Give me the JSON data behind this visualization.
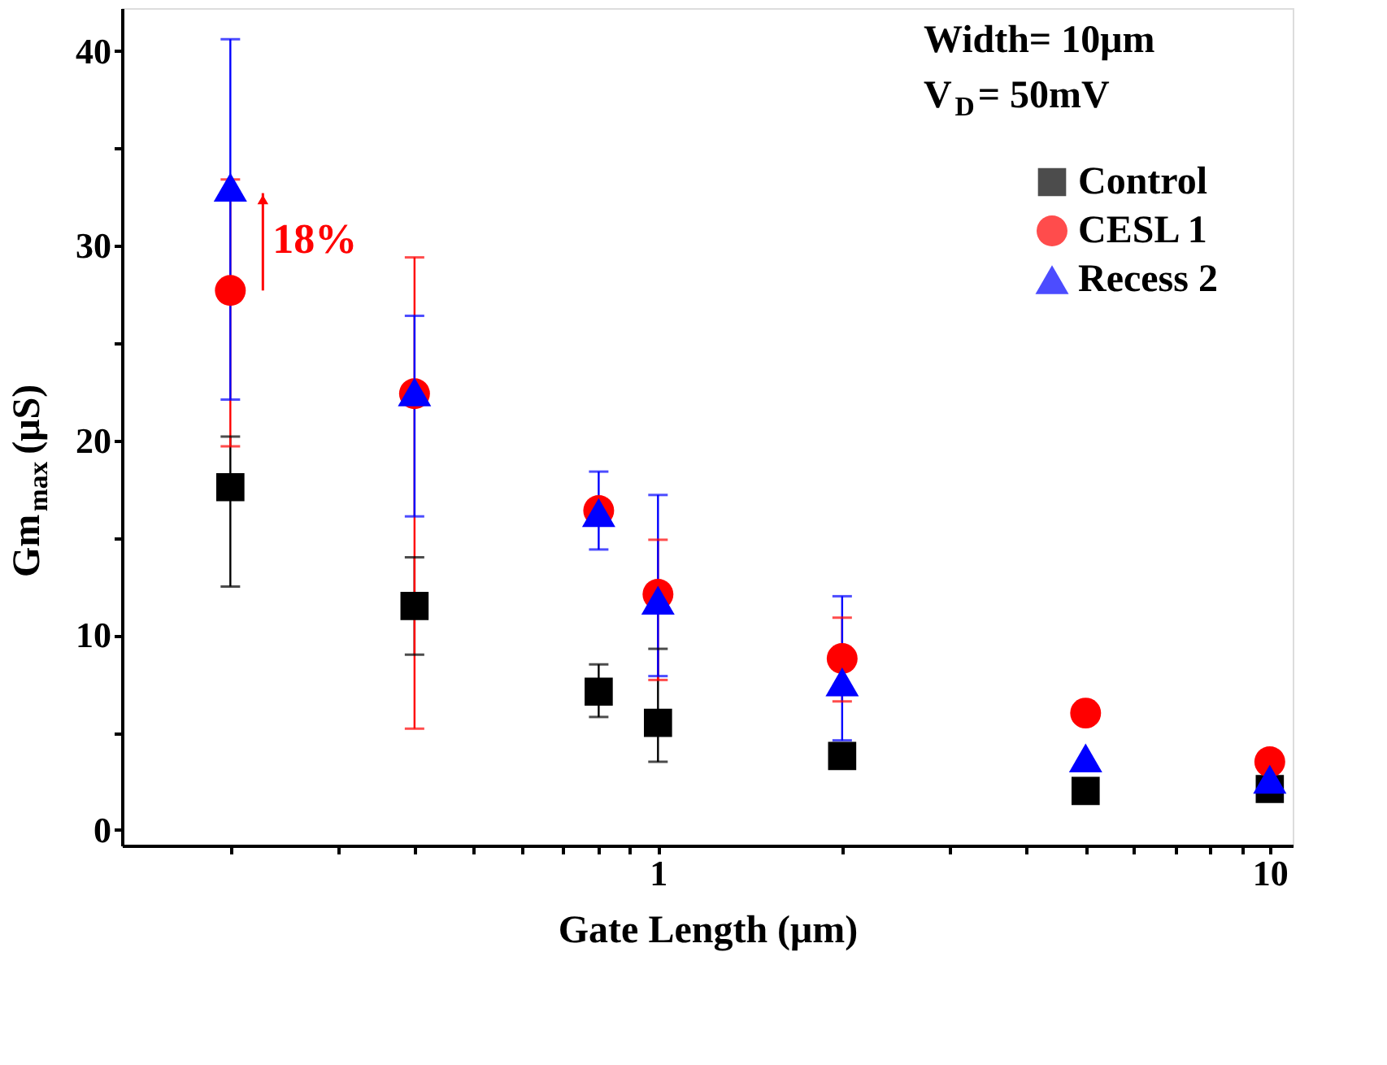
{
  "chart_data": {
    "type": "scatter",
    "xlabel": "Gate Length (μm)",
    "ylabel": "Gm$_{max}$ (μS)",
    "x": [
      0.2,
      0.4,
      0.8,
      1,
      2,
      5,
      10
    ],
    "log": "x",
    "xlim": [
      0.133,
      10.9
    ],
    "ylim": [
      -0.8,
      42.2
    ],
    "xticks": [
      {
        "value": 0.2,
        "label": null
      },
      {
        "value": 0.3,
        "label": null
      },
      {
        "value": 0.4,
        "label": null
      },
      {
        "value": 0.5,
        "label": null
      },
      {
        "value": 0.6,
        "label": null
      },
      {
        "value": 0.7,
        "label": null
      },
      {
        "value": 0.8,
        "label": null
      },
      {
        "value": 0.9,
        "label": null
      },
      1,
      {
        "value": 2,
        "label": null
      },
      {
        "value": 3,
        "label": null
      },
      {
        "value": 4,
        "label": null
      },
      {
        "value": 5,
        "label": null
      },
      {
        "value": 6,
        "label": null
      },
      {
        "value": 7,
        "label": null
      },
      {
        "value": 8,
        "label": null
      },
      {
        "value": 9,
        "label": null
      },
      10
    ],
    "yticks": [
      0,
      {
        "value": 5,
        "label": null
      },
      10,
      {
        "value": 15,
        "label": null
      },
      20,
      {
        "value": 25,
        "label": null
      },
      30,
      {
        "value": 35,
        "label": null
      },
      40
    ],
    "grid": false,
    "legend": "top right",
    "series": [
      {
        "name": "Control",
        "color": "#000000",
        "marker": "square",
        "values": [
          17.6,
          11.5,
          7.1,
          5.5,
          3.8,
          2.0,
          2.1
        ],
        "errors": [
          [
            12.5,
            20.2
          ],
          [
            9.0,
            14.0
          ],
          [
            5.8,
            8.5
          ],
          [
            3.5,
            9.3
          ],
          null,
          null,
          [
            1.6,
            2.6
          ]
        ]
      },
      {
        "name": "CESL 1",
        "color": "#ff0000",
        "marker": "circle",
        "values": [
          27.7,
          22.4,
          16.4,
          12.1,
          8.8,
          6.0,
          3.5
        ],
        "errors": [
          [
            19.7,
            33.4
          ],
          [
            5.2,
            29.4
          ],
          null,
          [
            7.7,
            14.9
          ],
          [
            6.6,
            10.9
          ],
          null,
          null
        ]
      },
      {
        "name": "Recess 2",
        "color": "#0000ff",
        "marker": "triangle",
        "values": [
          33.0,
          22.5,
          16.3,
          11.8,
          7.6,
          3.7,
          2.6
        ],
        "errors": [
          [
            22.1,
            40.6
          ],
          [
            16.1,
            26.4
          ],
          [
            14.4,
            18.4
          ],
          [
            7.9,
            17.2
          ],
          [
            4.6,
            12.0
          ],
          null,
          [
            2.0,
            3.3
          ]
        ]
      }
    ],
    "annotations": [
      {
        "text": "18%",
        "x": 0.2,
        "y": 30.3
      },
      "Width= 10μm",
      "V$_{D}$= 50mV"
    ]
  }
}
